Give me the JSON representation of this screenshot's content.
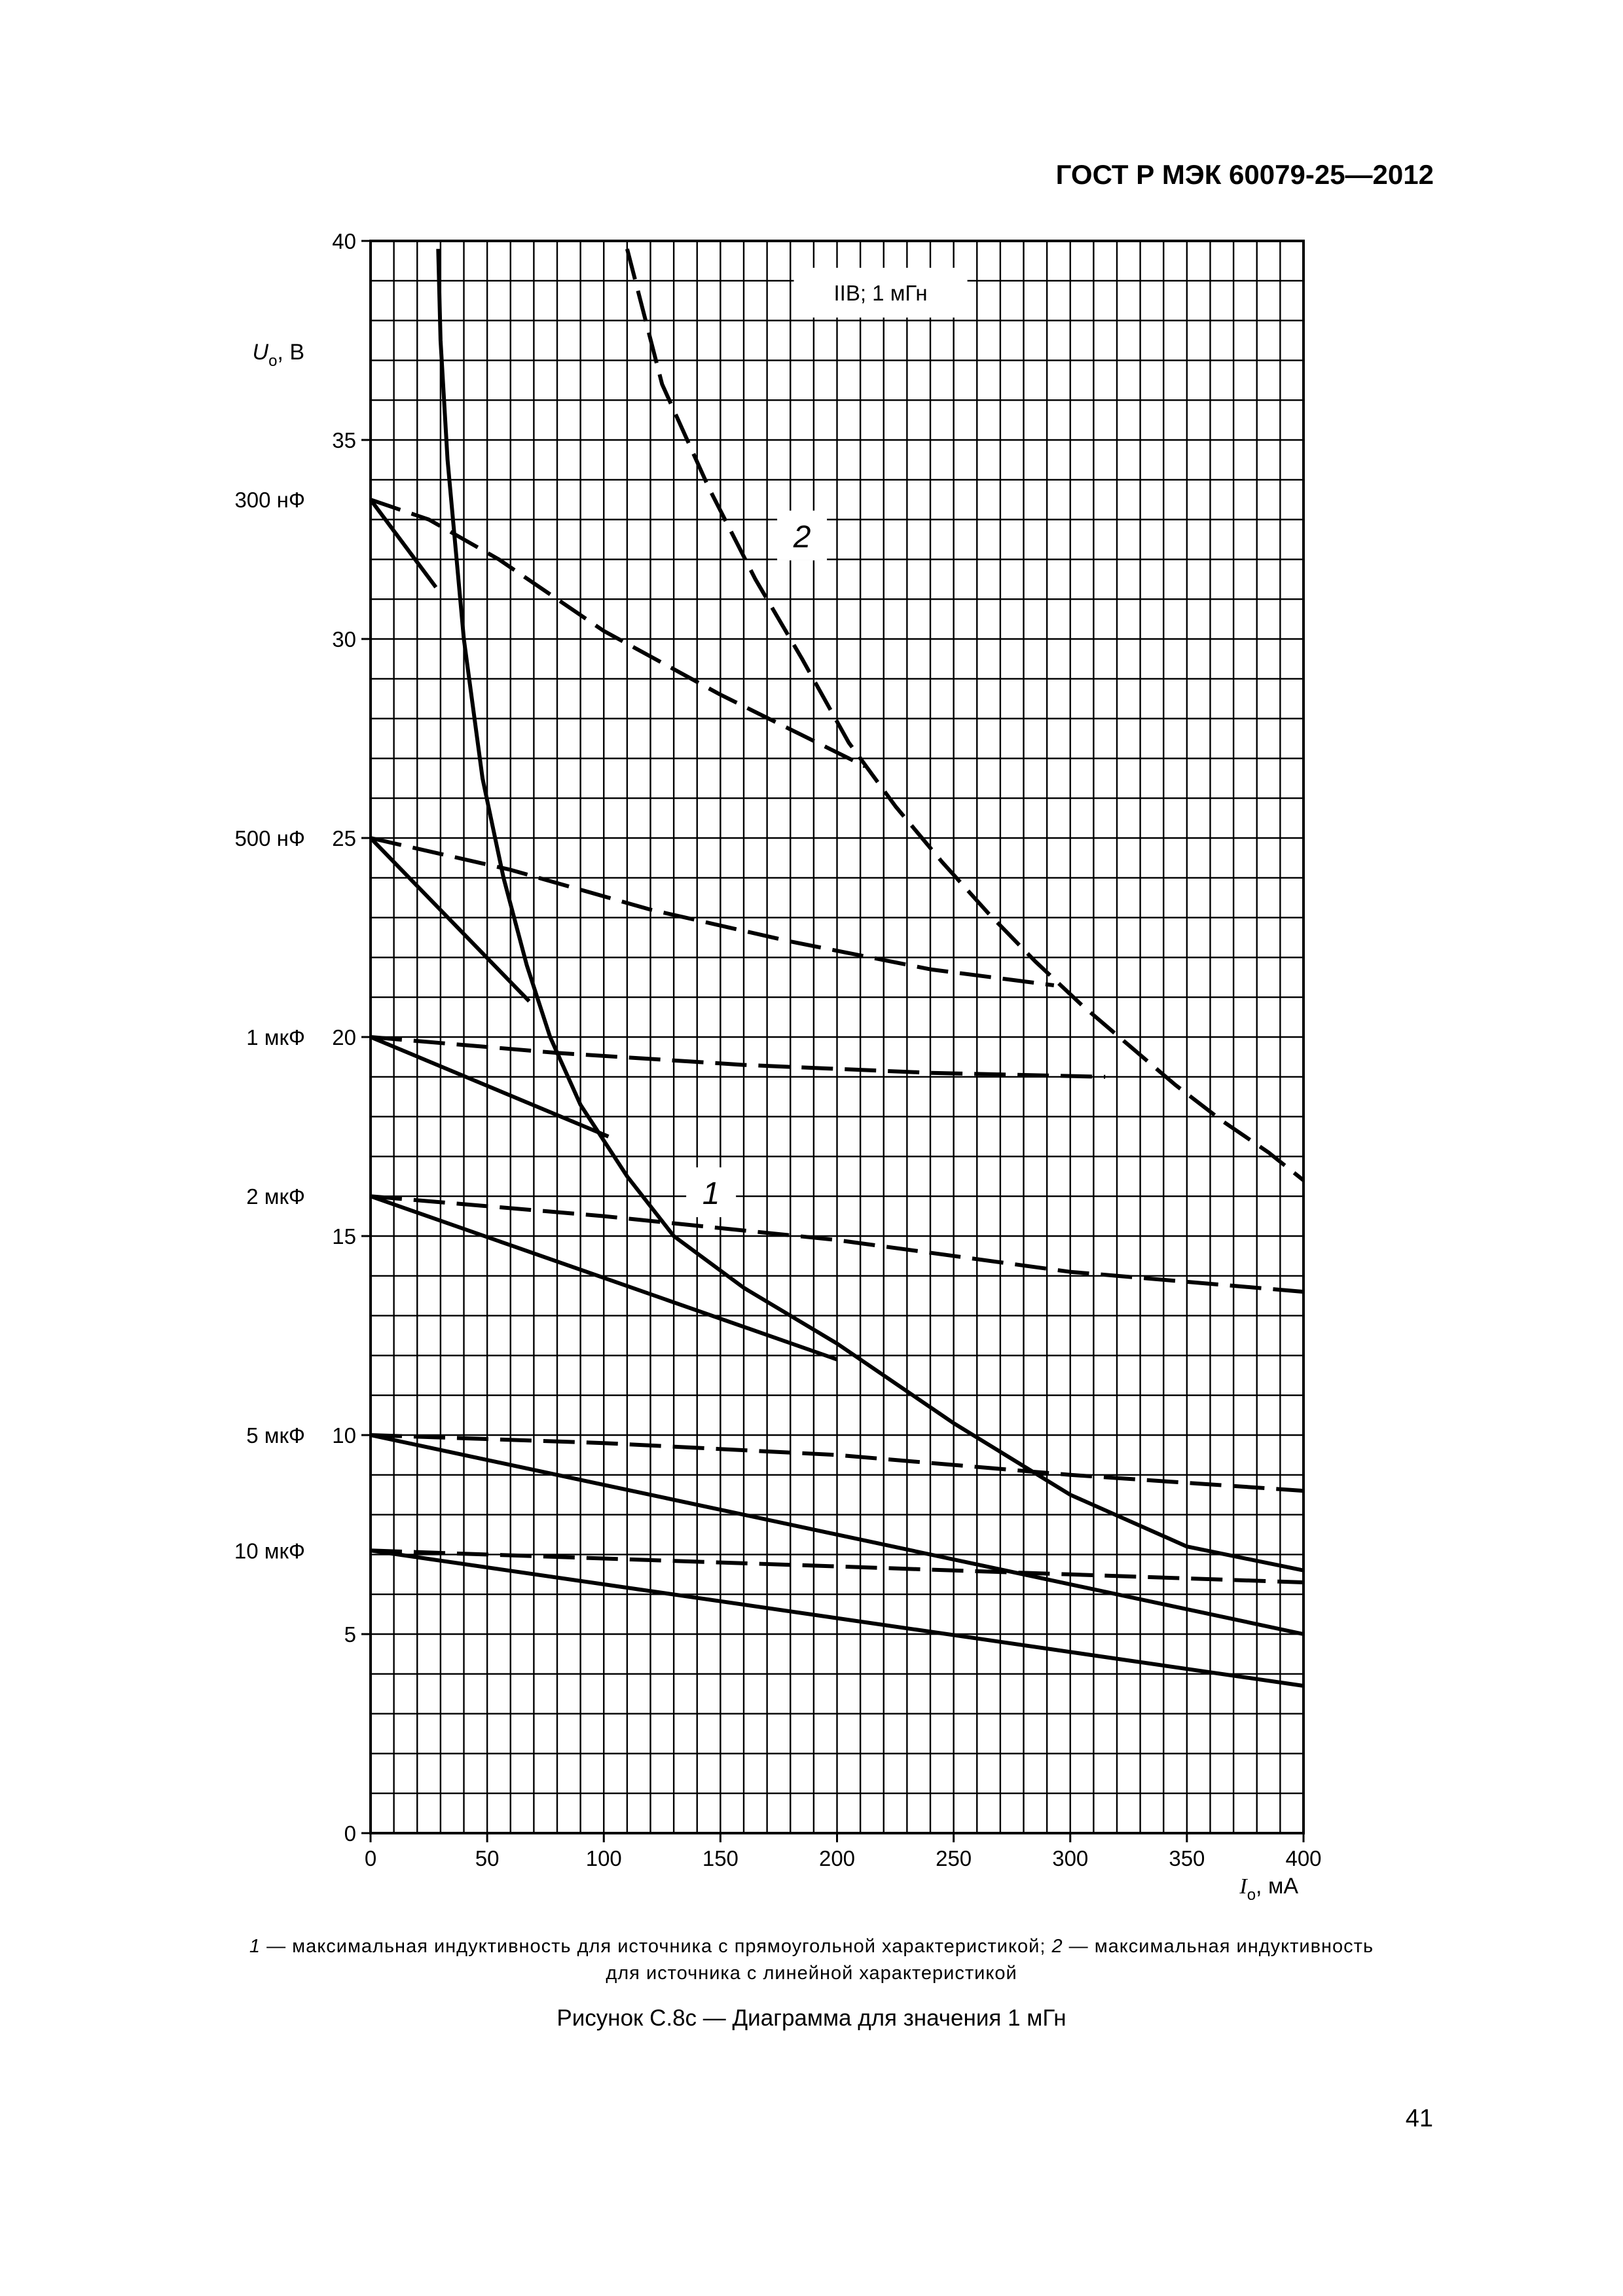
{
  "header": {
    "standard": "ГОСТ Р МЭК 60079-25—2012"
  },
  "chart_data": {
    "type": "line",
    "legend_box": "IIB; 1 мГн",
    "ylabel": {
      "symbol": "U",
      "sub": "o",
      "unit": ", В"
    },
    "xlabel": {
      "symbol": "I",
      "sub": "o",
      "unit": ", мА"
    },
    "xlim": [
      0,
      400
    ],
    "ylim": [
      0,
      40
    ],
    "x_ticks": [
      "0",
      "50",
      "100",
      "150",
      "200",
      "250",
      "300",
      "350",
      "400"
    ],
    "y_ticks": [
      "0",
      "5",
      "10",
      "15",
      "20",
      "25",
      "30",
      "35",
      "40"
    ],
    "capacitance_labels": [
      {
        "label": "300 нФ",
        "y": 33.5
      },
      {
        "label": "500 нФ",
        "y": 25
      },
      {
        "label": "1 мкФ",
        "y": 20
      },
      {
        "label": "2 мкФ",
        "y": 16
      },
      {
        "label": "5 мкФ",
        "y": 10
      },
      {
        "label": "10 мкФ",
        "y": 7.1
      }
    ],
    "curve_labels": [
      {
        "label": "1",
        "x": 146,
        "y": 16.1
      },
      {
        "label": "2",
        "x": 185,
        "y": 32.6
      }
    ],
    "series": [
      {
        "style": "solid",
        "x": [
          29,
          30,
          33,
          40,
          48,
          57,
          67,
          77,
          90,
          110,
          130,
          160,
          200,
          250,
          300,
          350,
          400
        ],
        "y": [
          39.8,
          37.5,
          34.5,
          30,
          26.5,
          24,
          21.8,
          20,
          18.3,
          16.5,
          15,
          13.7,
          12.3,
          10.3,
          8.5,
          7.2,
          6.6
        ]
      },
      {
        "style": "dashed",
        "x": [
          110,
          125,
          145,
          165,
          185,
          205,
          225,
          245,
          265,
          285,
          305,
          325,
          345,
          365,
          385,
          400
        ],
        "y": [
          39.8,
          36.4,
          33.8,
          31.5,
          29.5,
          27.4,
          25.8,
          24.4,
          23.1,
          21.9,
          20.8,
          19.8,
          18.8,
          17.9,
          17.1,
          16.4
        ]
      },
      {
        "style": "solid",
        "x": [
          0,
          28
        ],
        "y": [
          33.5,
          31.3
        ]
      },
      {
        "style": "dashed",
        "x": [
          0,
          25,
          55,
          100,
          150,
          212
        ],
        "y": [
          33.5,
          33,
          32,
          30.2,
          28.6,
          26.8
        ]
      },
      {
        "style": "solid",
        "x": [
          0,
          68
        ],
        "y": [
          25,
          20.9
        ]
      },
      {
        "style": "dashed",
        "x": [
          0,
          60,
          120,
          180,
          240,
          293
        ],
        "y": [
          25,
          24.2,
          23.2,
          22.4,
          21.7,
          21.3
        ]
      },
      {
        "style": "solid",
        "x": [
          0,
          102
        ],
        "y": [
          20,
          17.5
        ]
      },
      {
        "style": "dashed",
        "x": [
          0,
          80,
          160,
          240,
          315
        ],
        "y": [
          20,
          19.6,
          19.3,
          19.1,
          19.0
        ]
      },
      {
        "style": "solid",
        "x": [
          0,
          200
        ],
        "y": [
          16,
          11.9
        ]
      },
      {
        "style": "dashed",
        "x": [
          0,
          100,
          200,
          300,
          400
        ],
        "y": [
          16,
          15.5,
          14.9,
          14.1,
          13.6
        ]
      },
      {
        "style": "solid",
        "x": [
          0,
          400
        ],
        "y": [
          10,
          5
        ]
      },
      {
        "style": "dashed",
        "x": [
          0,
          100,
          200,
          300,
          400
        ],
        "y": [
          10,
          9.8,
          9.5,
          9.0,
          8.6
        ]
      },
      {
        "style": "solid",
        "x": [
          0,
          400
        ],
        "y": [
          7.1,
          3.7
        ]
      },
      {
        "style": "dashed",
        "x": [
          0,
          100,
          200,
          300,
          400
        ],
        "y": [
          7.1,
          6.9,
          6.7,
          6.5,
          6.3
        ]
      }
    ]
  },
  "caption": {
    "n1": "1",
    "t1": " — максимальная индуктивность для источника с прямоугольной характеристикой; ",
    "n2": "2",
    "t2": " — максимальная индуктивность",
    "line2": "для источника с линейной характеристикой"
  },
  "figure_title": "Рисунок С.8с — Диаграмма для значения 1 мГн",
  "page_number": "41"
}
